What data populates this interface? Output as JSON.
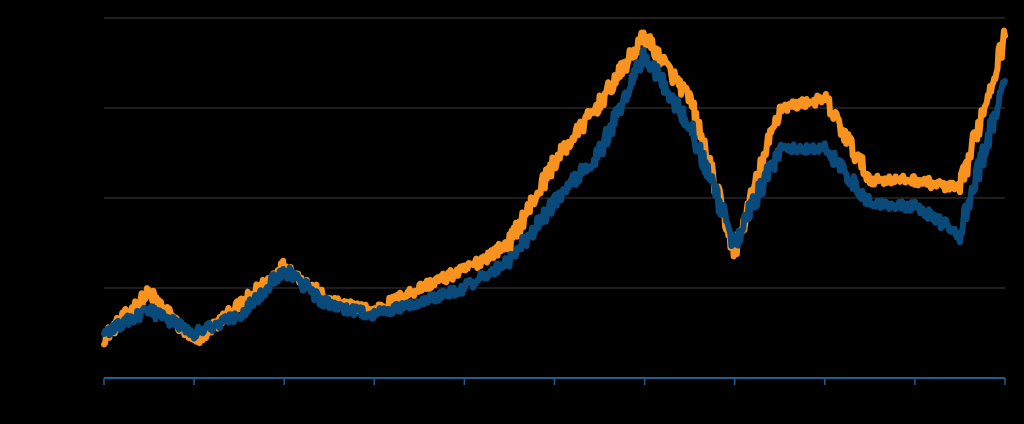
{
  "chart_data": {
    "type": "line",
    "title": "",
    "xlabel": "",
    "ylabel": "",
    "x": [
      0,
      0.5,
      1,
      1.5,
      2,
      2.5,
      3,
      3.5,
      4,
      4.5,
      5,
      5.5,
      6,
      6.5,
      7,
      7.5,
      8,
      8.5,
      9,
      9.5,
      10
    ],
    "xlim": [
      0,
      10
    ],
    "ylim": [
      0,
      4
    ],
    "grid": true,
    "legend": "none",
    "series": [
      {
        "color": "#F7931E",
        "values": [
          0.45,
          0.95,
          0.4,
          0.8,
          1.25,
          0.85,
          0.75,
          1.0,
          1.2,
          1.5,
          2.4,
          3.05,
          3.8,
          3.1,
          1.4,
          3.0,
          3.1,
          2.2,
          2.2,
          2.1,
          3.8
        ]
      },
      {
        "color": "#0A4A7A",
        "values": [
          0.5,
          0.75,
          0.5,
          0.7,
          1.2,
          0.8,
          0.7,
          0.85,
          1.0,
          1.3,
          1.95,
          2.5,
          3.6,
          2.8,
          1.5,
          2.55,
          2.55,
          1.95,
          1.9,
          1.6,
          3.3
        ]
      }
    ]
  }
}
